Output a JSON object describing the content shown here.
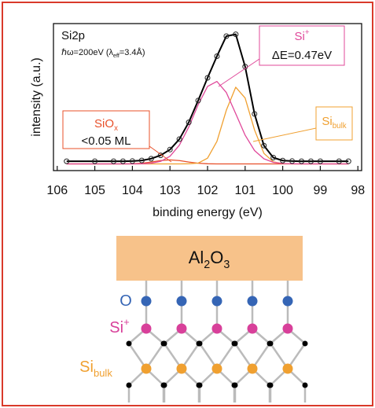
{
  "chart_data": {
    "type": "line",
    "title": "Si2p",
    "subtitle": {
      "pre": "ℏω=200eV (λ",
      "sub": "eff",
      "post": "=3.4Å)"
    },
    "xlabel": "binding energy (eV)",
    "ylabel": "intensity (a.u.)",
    "xlim": [
      106.1,
      97.9
    ],
    "xticks": [
      106,
      105,
      104,
      103,
      102,
      101,
      100,
      99,
      98
    ],
    "ylim": [
      -0.05,
      1.05
    ],
    "x": [
      105.75,
      105.0,
      104.5,
      104.25,
      104.0,
      103.75,
      103.5,
      103.25,
      103.0,
      102.75,
      102.5,
      102.25,
      102.0,
      101.75,
      101.5,
      101.25,
      101.0,
      100.75,
      100.5,
      100.25,
      100.0,
      99.75,
      99.5,
      99.25,
      99.0,
      98.5,
      98.25
    ],
    "series": [
      {
        "style": "markers",
        "color": "#222222",
        "values": [
          0.02,
          0.02,
          0.02,
          0.02,
          0.021,
          0.026,
          0.039,
          0.064,
          0.107,
          0.185,
          0.311,
          0.474,
          0.644,
          0.806,
          0.956,
          0.97,
          0.728,
          0.374,
          0.137,
          0.047,
          0.025,
          0.021,
          0.02,
          0.02,
          0.02,
          0.02,
          0.02
        ]
      },
      {
        "style": "line",
        "color": "#000000",
        "width": 2,
        "values": [
          0.02,
          0.02,
          0.02,
          0.02,
          0.021,
          0.026,
          0.039,
          0.064,
          0.107,
          0.185,
          0.311,
          0.474,
          0.644,
          0.806,
          0.956,
          0.97,
          0.728,
          0.374,
          0.137,
          0.047,
          0.025,
          0.021,
          0.02,
          0.02,
          0.02,
          0.02,
          0.02
        ]
      },
      {
        "style": "line",
        "color": "#e0489a",
        "width": 1.3,
        "values": [
          0,
          0,
          0,
          0,
          0,
          0.001,
          0.005,
          0.019,
          0.057,
          0.14,
          0.276,
          0.443,
          0.58,
          0.617,
          0.534,
          0.376,
          0.215,
          0.1,
          0.038,
          0.012,
          0.003,
          0.001,
          0,
          0,
          0,
          0,
          0
        ]
      },
      {
        "style": "line",
        "color": "#f0a030",
        "width": 1.3,
        "values": [
          0,
          0,
          0,
          0,
          0,
          0,
          0,
          0,
          0,
          0,
          0.001,
          0.006,
          0.043,
          0.169,
          0.402,
          0.574,
          0.493,
          0.254,
          0.079,
          0.015,
          0.002,
          0,
          0,
          0,
          0,
          0,
          0
        ]
      },
      {
        "style": "line",
        "color": "#e8502a",
        "width": 1.3,
        "values": [
          0,
          0,
          0,
          0,
          0.001,
          0.005,
          0.014,
          0.025,
          0.03,
          0.025,
          0.014,
          0.005,
          0.001,
          0,
          0,
          0,
          0,
          0,
          0,
          0,
          0,
          0,
          0,
          0,
          0,
          0,
          0
        ]
      }
    ],
    "annotations": [
      {
        "base": "Si",
        "sup": "+",
        "line2": "ΔE=0.47eV",
        "color": "#e0489a"
      },
      {
        "base": "Si",
        "sub": "bulk",
        "color": "#f0a030"
      },
      {
        "base": "SiO",
        "sub": "x",
        "line2": "<0.05 ML",
        "color": "#e8502a"
      }
    ]
  },
  "schematic": {
    "layer": {
      "base": "Al",
      "sub1": "2",
      "mid": "O",
      "sub2": "3"
    },
    "rows": [
      {
        "base": "O",
        "color": "#3565b5"
      },
      {
        "base": "Si",
        "sup": "+",
        "color": "#d8409a"
      },
      {
        "base": "Si",
        "sub": "bulk",
        "color": "#f0a030"
      }
    ]
  }
}
